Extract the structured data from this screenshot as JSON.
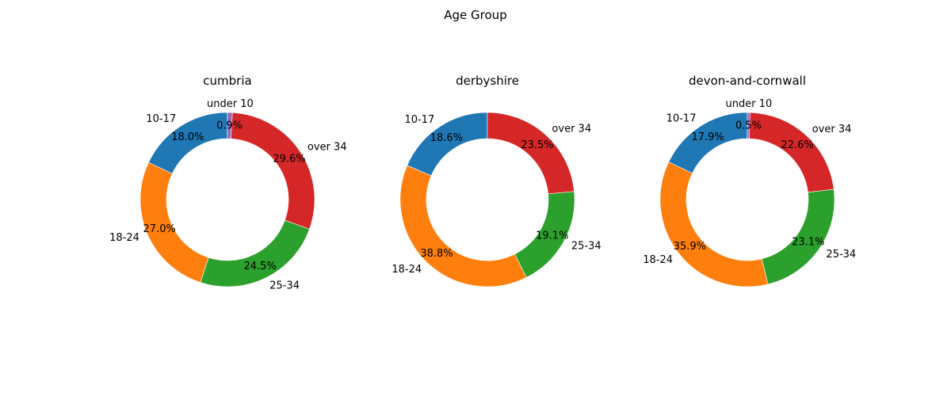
{
  "chart_data": {
    "type": "pie",
    "style": "donut",
    "title": "Age Group",
    "categories": [
      "10-17",
      "18-24",
      "25-34",
      "over 34",
      "under 10"
    ],
    "colors": {
      "10-17": "#1f77b4",
      "18-24": "#ff7f0e",
      "25-34": "#2ca02c",
      "over 34": "#d62728",
      "under 10": "#9467bd"
    },
    "charts": [
      {
        "title": "cumbria",
        "slices": [
          {
            "label": "10-17",
            "value": 18.0,
            "pct_text": "18.0%"
          },
          {
            "label": "18-24",
            "value": 27.0,
            "pct_text": "27.0%"
          },
          {
            "label": "25-34",
            "value": 24.5,
            "pct_text": "24.5%"
          },
          {
            "label": "over 34",
            "value": 29.6,
            "pct_text": "29.6%"
          },
          {
            "label": "under 10",
            "value": 0.9,
            "pct_text": "0.9%"
          }
        ]
      },
      {
        "title": "derbyshire",
        "slices": [
          {
            "label": "10-17",
            "value": 18.6,
            "pct_text": "18.6%"
          },
          {
            "label": "18-24",
            "value": 38.8,
            "pct_text": "38.8%"
          },
          {
            "label": "25-34",
            "value": 19.1,
            "pct_text": "19.1%"
          },
          {
            "label": "over 34",
            "value": 23.5,
            "pct_text": "23.5%"
          }
        ]
      },
      {
        "title": "devon-and-cornwall",
        "slices": [
          {
            "label": "10-17",
            "value": 17.9,
            "pct_text": "17.9%"
          },
          {
            "label": "18-24",
            "value": 35.9,
            "pct_text": "35.9%"
          },
          {
            "label": "25-34",
            "value": 23.1,
            "pct_text": "23.1%"
          },
          {
            "label": "over 34",
            "value": 22.6,
            "pct_text": "22.6%"
          },
          {
            "label": "under 10",
            "value": 0.5,
            "pct_text": "0.5%"
          }
        ]
      }
    ]
  }
}
